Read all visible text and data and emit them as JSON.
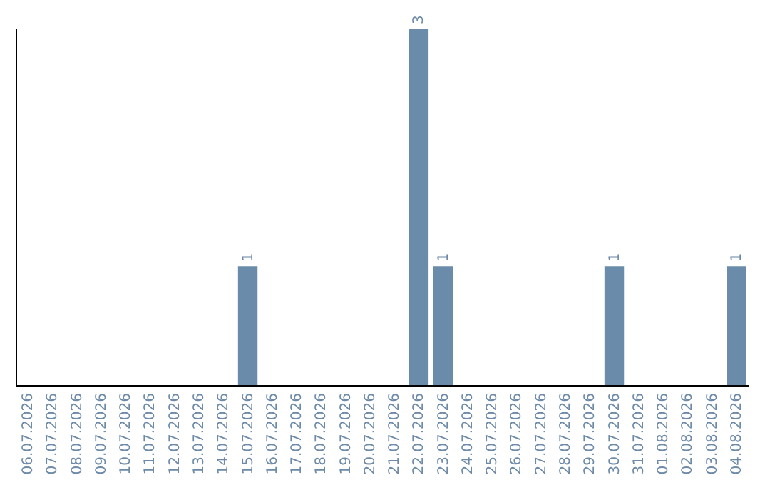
{
  "chart_data": {
    "type": "bar",
    "categories": [
      "06.07.2026",
      "07.07.2026",
      "08.07.2026",
      "09.07.2026",
      "10.07.2026",
      "11.07.2026",
      "12.07.2026",
      "13.07.2026",
      "14.07.2026",
      "15.07.2026",
      "16.07.2026",
      "17.07.2026",
      "18.07.2026",
      "19.07.2026",
      "20.07.2026",
      "21.07.2026",
      "22.07.2026",
      "23.07.2026",
      "24.07.2026",
      "25.07.2026",
      "26.07.2026",
      "27.07.2026",
      "28.07.2026",
      "29.07.2026",
      "30.07.2026",
      "31.07.2026",
      "01.08.2026",
      "02.08.2026",
      "03.08.2026",
      "04.08.2026"
    ],
    "values": [
      0,
      0,
      0,
      0,
      0,
      0,
      0,
      0,
      0,
      1,
      0,
      0,
      0,
      0,
      0,
      0,
      3,
      1,
      0,
      0,
      0,
      0,
      0,
      0,
      1,
      0,
      0,
      0,
      0,
      1
    ],
    "value_labels": [
      null,
      null,
      null,
      null,
      null,
      null,
      null,
      null,
      null,
      "1",
      null,
      null,
      null,
      null,
      null,
      null,
      "3",
      "1",
      null,
      null,
      null,
      null,
      null,
      null,
      "1",
      null,
      null,
      null,
      null,
      "1"
    ],
    "color": "#6a8caa",
    "ylim": [
      0,
      3
    ],
    "tick_labels": "x"
  }
}
